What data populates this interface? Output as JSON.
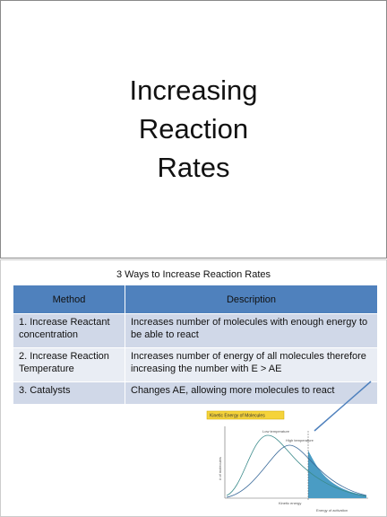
{
  "slide1": {
    "title_lines": [
      "Increasing",
      "Reaction",
      "Rates"
    ]
  },
  "slide2": {
    "title": "3 Ways to Increase Reaction Rates",
    "table": {
      "header": [
        "Method",
        "Description"
      ],
      "rows": [
        [
          "1.  Increase Reactant concentration",
          "Increases number of molecules with enough energy to be able to react"
        ],
        [
          "2.  Increase Reaction Temperature",
          "Increases number of energy of all molecules therefore increasing the number with E > AE"
        ],
        [
          "3.  Catalysts",
          "Changes AE, allowing more molecules to react"
        ]
      ]
    },
    "figure": {
      "title": "Kinetic Energy of Molecules",
      "low_label": "Low temperature",
      "high_label": "High temperature",
      "x_label": "Kinetic energy",
      "y_label": "# of molecules",
      "ea_label": "Energy of activation"
    }
  }
}
